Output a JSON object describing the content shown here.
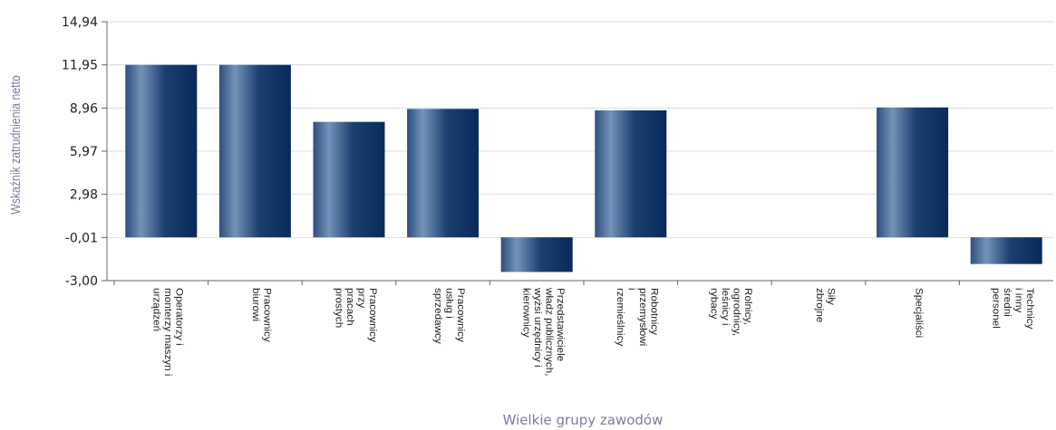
{
  "chart_data": {
    "type": "bar",
    "title": "",
    "xlabel": "Wielkie grupy zawodów",
    "ylabel": "Wskaźnik zatrudnienia netto",
    "ylim": [
      -3.0,
      14.94
    ],
    "yticks": [
      "14,94",
      "11,95",
      "8,96",
      "5,97",
      "2,98",
      "-0,01",
      "-3,00"
    ],
    "ytick_values": [
      14.94,
      11.95,
      8.96,
      5.97,
      2.98,
      -0.01,
      -3.0
    ],
    "grid": true,
    "categories": [
      [
        "Operatorzy i",
        "monterzy maszyn i",
        "urządzeń"
      ],
      [
        "Pracownicy",
        "biurowi"
      ],
      [
        "Pracownicy",
        "przy",
        "pracach",
        "prostych"
      ],
      [
        "Pracownicy",
        "usług i",
        "sprzedawcy"
      ],
      [
        "Przedstawiciele",
        "władz publicznych,",
        "wyżsi urzędnicy i",
        "kierownicy"
      ],
      [
        "Robotnicy",
        "przemysłowi",
        "i",
        "rzemieślnicy"
      ],
      [
        "Rolnicy,",
        "ogrodnicy,",
        "leśnicy i",
        "rybacy"
      ],
      [
        "Siły",
        "zbrojne"
      ],
      [
        "Specjaliści"
      ],
      [
        "Technicy",
        "i inny",
        "średni",
        "personel"
      ]
    ],
    "values": [
      11.95,
      11.95,
      8.0,
      8.9,
      -2.4,
      8.8,
      null,
      null,
      9.0,
      -1.85
    ],
    "colors": {
      "bar_light": "#6d8cb2",
      "bar_dark": "#0b2d5e",
      "grid": "#d9dde6",
      "axis": "#666666"
    }
  }
}
